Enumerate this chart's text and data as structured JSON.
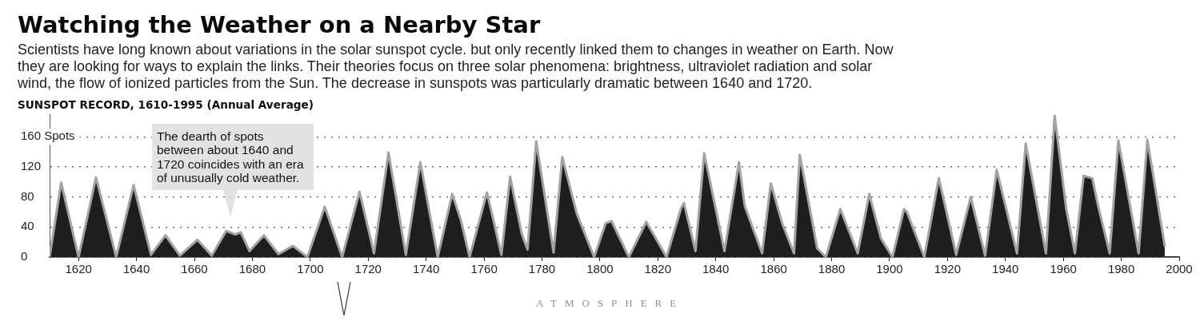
{
  "chart_data": {
    "type": "area",
    "title": "Watching the Weather on a Nearby Star",
    "subtitle": "Scientists have long known about variations in the solar sunspot cycle. but only recently linked them to changes in weather on Earth. Now they are looking for ways to explain the links. Their theories focus on three solar phenomena: brightness, ultraviolet radiation and solar wind, the flow of ionized particles from the Sun. The decrease in sunspots was particularly dramatic between 1640 and 1720.",
    "annotations": [
      "SUNSPOT RECORD, 1610-1995 (Annual Average)",
      "The dearth of spots between about 1640 and 1720 coincides with an era of unusually cold weather.",
      "ATMOSPHERE"
    ],
    "x": [
      1610,
      1614,
      1620,
      1626,
      1633,
      1639,
      1645,
      1650,
      1655,
      1661,
      1666,
      1671,
      1674,
      1676,
      1679,
      1684,
      1689,
      1694,
      1699,
      1705,
      1711,
      1717,
      1722,
      1727,
      1733,
      1738,
      1744,
      1749,
      1752,
      1755,
      1761,
      1766,
      1769,
      1773,
      1775,
      1778,
      1784,
      1787,
      1792,
      1798,
      1802,
      1804,
      1810,
      1816,
      1823,
      1828,
      1829,
      1833,
      1836,
      1843,
      1848,
      1850,
      1856,
      1859,
      1863,
      1867,
      1869,
      1875,
      1878,
      1883,
      1889,
      1893,
      1897,
      1901,
      1905,
      1906,
      1912,
      1917,
      1923,
      1928,
      1933,
      1937,
      1944,
      1947,
      1954,
      1957,
      1961,
      1964,
      1967,
      1970,
      1972,
      1976,
      1979,
      1986,
      1989,
      1995
    ],
    "values": [
      0,
      99,
      0,
      106,
      0,
      96,
      3,
      29,
      2,
      23,
      2,
      35,
      30,
      33,
      8,
      29,
      4,
      15,
      0,
      67,
      0,
      87,
      5,
      139,
      3,
      126,
      0,
      84,
      49,
      0,
      86,
      3,
      107,
      31,
      10,
      154,
      6,
      133,
      58,
      0,
      45,
      48,
      0,
      47,
      0,
      65,
      72,
      8,
      138,
      8,
      126,
      68,
      5,
      98,
      44,
      5,
      136,
      12,
      0,
      64,
      5,
      84,
      25,
      0,
      64,
      60,
      0,
      105,
      3,
      80,
      2,
      116,
      5,
      151,
      5,
      188,
      64,
      5,
      108,
      105,
      68,
      5,
      155,
      5,
      156,
      15
    ],
    "color": "#1e1e1e",
    "xlim": [
      1610,
      2000
    ],
    "xticks": [
      1620,
      1640,
      1660,
      1680,
      1700,
      1720,
      1740,
      1760,
      1780,
      1800,
      1820,
      1840,
      1860,
      1880,
      1900,
      1920,
      1940,
      1960,
      1980,
      2000
    ],
    "ylim": [
      0,
      190
    ],
    "yticks": [
      0,
      40,
      80,
      120,
      {
        "value": 160,
        "label": "160 Spots"
      }
    ],
    "grid": "y"
  }
}
